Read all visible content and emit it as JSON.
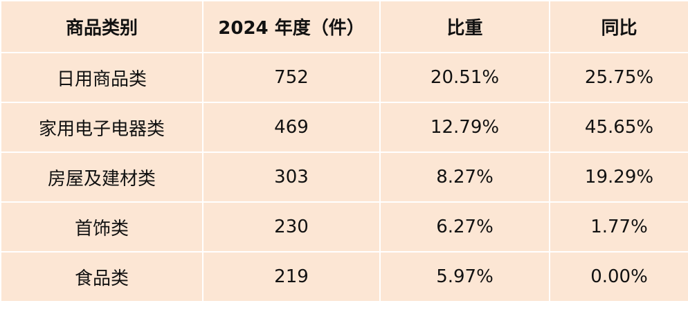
{
  "table": {
    "header": [
      "商品类别",
      "2024 年度（件）",
      "比重",
      "同比"
    ],
    "rows": [
      [
        "日用商品类",
        "752",
        "20.51%",
        "25.75%"
      ],
      [
        "家用电子电器类",
        "469",
        "12.79%",
        "45.65%"
      ],
      [
        "房屋及建材类",
        "303",
        "8.27%",
        "19.29%"
      ],
      [
        "首饰类",
        "230",
        "6.27%",
        "1.77%"
      ],
      [
        "食品类",
        "219",
        "5.97%",
        "0.00%"
      ]
    ]
  }
}
